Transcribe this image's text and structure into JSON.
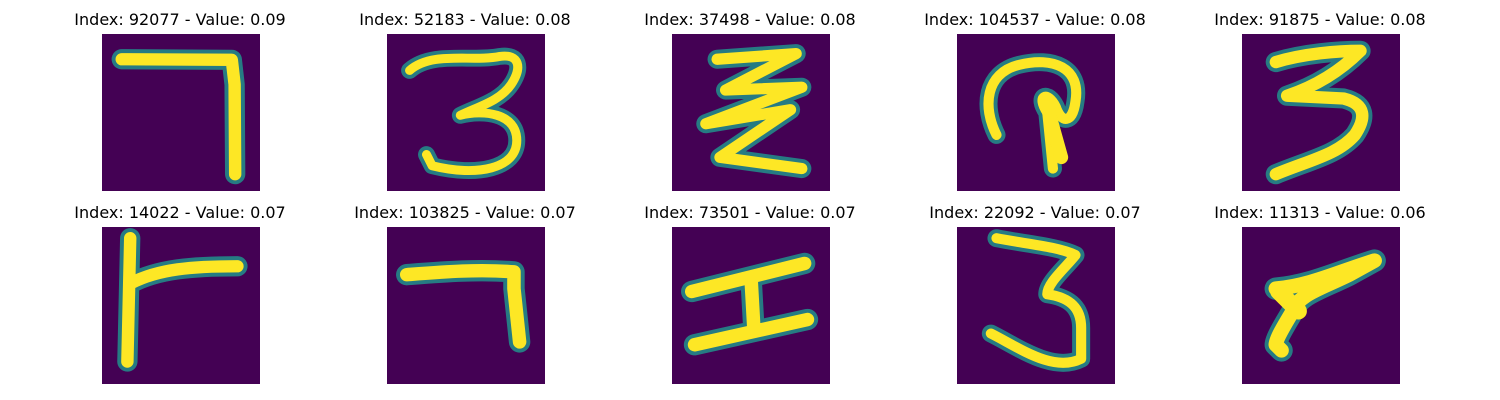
{
  "colors": {
    "background": "#440154",
    "mid": "#21918c",
    "stroke": "#fde725"
  },
  "panels": [
    {
      "title": "Index: 92077 - Value: 0.09",
      "digit": "seven-glyph"
    },
    {
      "title": "Index: 52183 - Value: 0.08",
      "digit": "three-glyph"
    },
    {
      "title": "Index: 37498 - Value: 0.08",
      "digit": "zigzag-glyph"
    },
    {
      "title": "Index: 104537 - Value: 0.08",
      "digit": "hook-glyph"
    },
    {
      "title": "Index: 91875 - Value: 0.08",
      "digit": "three-glyph"
    },
    {
      "title": "Index: 14022 - Value: 0.07",
      "digit": "seven-glyph"
    },
    {
      "title": "Index: 103825 - Value: 0.07",
      "digit": "seven-glyph"
    },
    {
      "title": "Index: 73501 - Value: 0.07",
      "digit": "i-glyph"
    },
    {
      "title": "Index: 22092 - Value: 0.07",
      "digit": "three-glyph"
    },
    {
      "title": "Index: 11313 - Value: 0.06",
      "digit": "seven-glyph"
    }
  ]
}
